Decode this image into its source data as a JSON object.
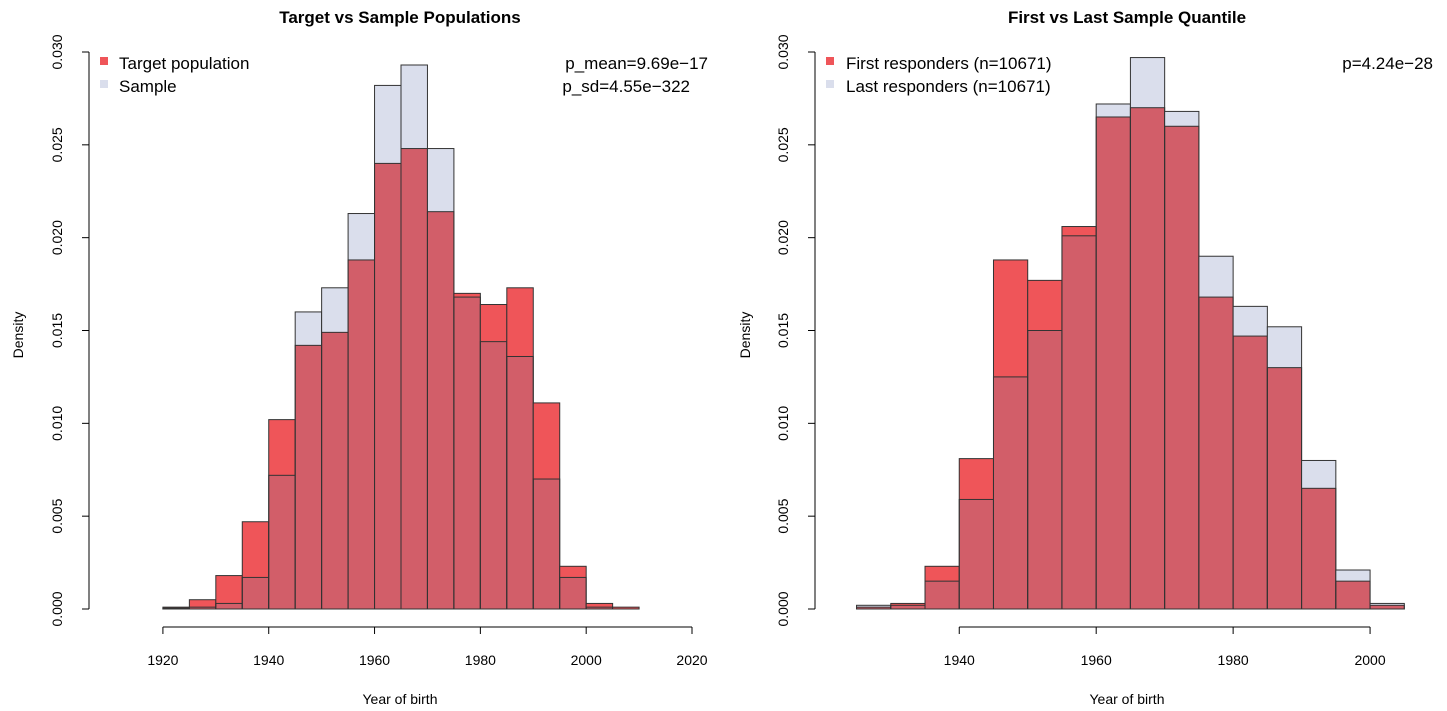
{
  "colors": {
    "red": "#EF5559",
    "blue": "#DADEEC",
    "overlap": "#D25E69",
    "outline": "#333333"
  },
  "chart_data": [
    {
      "type": "bar",
      "title": "Target vs Sample Populations",
      "xlabel": "Year of birth",
      "ylabel": "Density",
      "xlim": [
        1910,
        2020
      ],
      "ylim": [
        0,
        0.03
      ],
      "xticks": [
        1920,
        1940,
        1960,
        1980,
        2000,
        2020
      ],
      "xtick_labels": [
        "1920",
        "1940",
        "1960",
        "1980",
        "2000",
        "2020"
      ],
      "yticks": [
        0,
        0.005,
        0.01,
        0.015,
        0.02,
        0.025,
        0.03
      ],
      "ytick_labels": [
        "0.000",
        "0.005",
        "0.010",
        "0.015",
        "0.020",
        "0.025",
        "0.030"
      ],
      "bin_width": 5,
      "bin_starts": [
        1910,
        1915,
        1920,
        1925,
        1930,
        1935,
        1940,
        1945,
        1950,
        1955,
        1960,
        1965,
        1970,
        1975,
        1980,
        1985,
        1990,
        1995,
        2000,
        2005,
        2010,
        2015
      ],
      "series": [
        {
          "name": "Target population",
          "color": "red",
          "values": [
            0,
            0,
            0.0001,
            0.0005,
            0.0018,
            0.0047,
            0.0102,
            0.0142,
            0.0149,
            0.0188,
            0.024,
            0.0248,
            0.0214,
            0.017,
            0.0164,
            0.0173,
            0.0111,
            0.0023,
            0.0003,
            0.0001,
            0,
            0
          ]
        },
        {
          "name": "Sample",
          "color": "blue",
          "values": [
            0,
            0,
            5e-05,
            0.0001,
            0.0003,
            0.0017,
            0.0072,
            0.016,
            0.0173,
            0.0213,
            0.0282,
            0.0293,
            0.0248,
            0.0168,
            0.0144,
            0.0136,
            0.007,
            0.0017,
            0.0001,
            0,
            0,
            0
          ]
        }
      ],
      "legend": "top-left",
      "annotations": [
        "p_mean=9.69e−17",
        "p_sd=4.55e−322"
      ]
    },
    {
      "type": "bar",
      "title": "First vs Last Sample Quantile",
      "xlabel": "Year of birth",
      "ylabel": "Density",
      "xlim": [
        1922,
        2007
      ],
      "ylim": [
        0,
        0.03
      ],
      "xticks": [
        1940,
        1960,
        1980,
        2000
      ],
      "xtick_labels": [
        "1940",
        "1960",
        "1980",
        "2000"
      ],
      "yticks": [
        0,
        0.005,
        0.01,
        0.015,
        0.02,
        0.025,
        0.03
      ],
      "ytick_labels": [
        "0.000",
        "0.005",
        "0.010",
        "0.015",
        "0.020",
        "0.025",
        "0.030"
      ],
      "bin_width": 5,
      "bin_starts": [
        1925,
        1930,
        1935,
        1940,
        1945,
        1950,
        1955,
        1960,
        1965,
        1970,
        1975,
        1980,
        1985,
        1990,
        1995,
        2000
      ],
      "series": [
        {
          "name": "First responders (n=10671)",
          "color": "red",
          "values": [
            0.0001,
            0.0003,
            0.0023,
            0.0081,
            0.0188,
            0.0177,
            0.0206,
            0.0265,
            0.027,
            0.026,
            0.0168,
            0.0147,
            0.013,
            0.0065,
            0.0015,
            0.0002
          ]
        },
        {
          "name": "Last responders (n=10671)",
          "color": "blue",
          "values": [
            0.0002,
            0.0002,
            0.0015,
            0.0059,
            0.0125,
            0.015,
            0.0201,
            0.0272,
            0.0297,
            0.0268,
            0.019,
            0.0163,
            0.0152,
            0.008,
            0.0021,
            0.0003
          ]
        }
      ],
      "legend": "top-left",
      "annotations": [
        "p=4.24e−28"
      ]
    }
  ]
}
